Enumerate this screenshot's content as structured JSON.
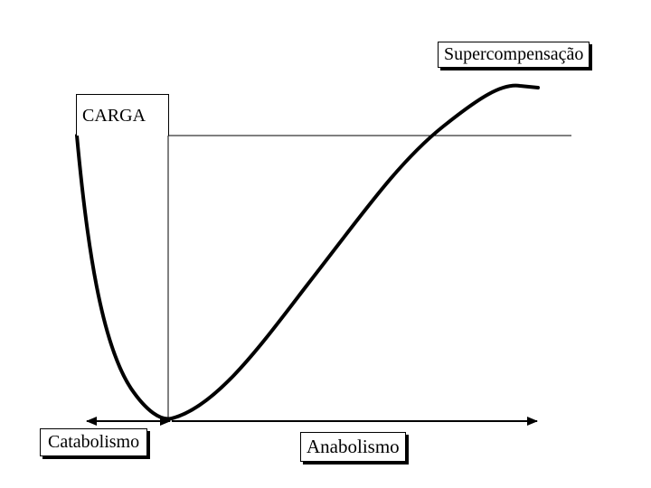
{
  "labels": {
    "supercompensacao": "Supercompensação",
    "carga": "CARGA",
    "catabolismo": "Catabolismo",
    "anabolismo": "Anabolismo"
  },
  "colors": {
    "line": "#000000",
    "background": "#ffffff"
  }
}
